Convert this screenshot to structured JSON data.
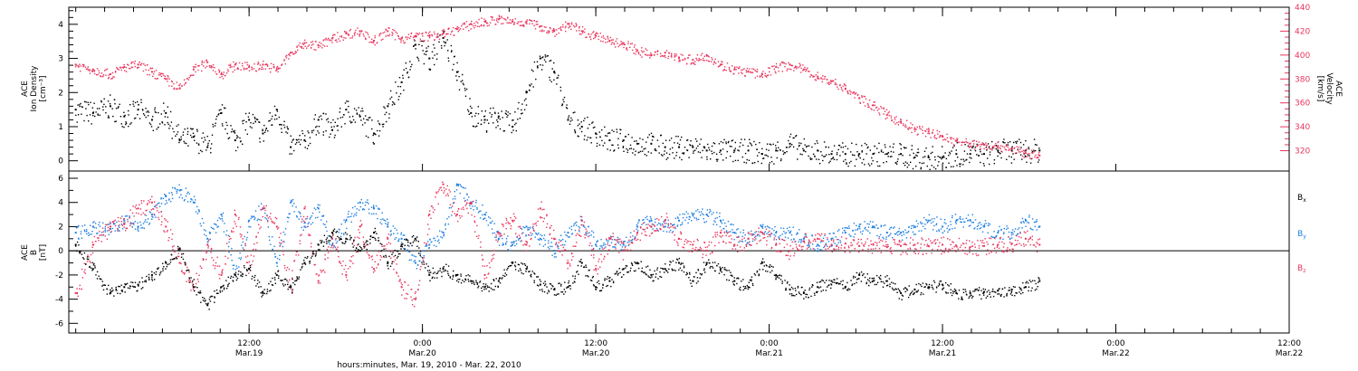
{
  "colors": {
    "black": "#000000",
    "red": "#e8365d",
    "blue": "#1f7fe0",
    "frame": "#000000"
  },
  "chart_data": [
    {
      "type": "scatter",
      "panel": "top",
      "ylabel_left": [
        "ACE",
        "Ion Density",
        "[cm⁻³]"
      ],
      "ylabel_right": [
        "ACE",
        "Velocity",
        "[km/s]"
      ],
      "ylim_left": [
        -0.3,
        4.5
      ],
      "ylim_right": [
        303,
        440
      ],
      "yticks_left": [
        "0",
        "1",
        "2",
        "3",
        "4"
      ],
      "yticks_right": [
        "320",
        "340",
        "360",
        "380",
        "400",
        "420",
        "440"
      ],
      "series": [
        {
          "axis": "left",
          "color": "#000000",
          "x": [
            0,
            0.05,
            0.1,
            0.14,
            0.18,
            0.22,
            0.26,
            0.3,
            0.34,
            0.38,
            0.42,
            0.46,
            0.5,
            0.54,
            0.58,
            0.62,
            0.66,
            0.7,
            0.74,
            0.78,
            0.82,
            0.86,
            0.9,
            0.94,
            0.98,
            1.02,
            1.06,
            1.1,
            1.14,
            1.18,
            1.22,
            1.26,
            1.3,
            1.34,
            1.38,
            1.42,
            1.46,
            1.5,
            1.54,
            1.58,
            1.62,
            1.66,
            1.7,
            1.74,
            1.78,
            1.82,
            1.86,
            1.9,
            1.94,
            1.98,
            2.02,
            2.06,
            2.1,
            2.14,
            2.18,
            2.22,
            2.26,
            2.3,
            2.34,
            2.38,
            2.42,
            2.46,
            2.5,
            2.54,
            2.58,
            2.62,
            2.66,
            2.7,
            2.74,
            2.78
          ],
          "y": [
            1.5,
            1.4,
            1.6,
            1.3,
            1.5,
            1.2,
            1.4,
            0.6,
            0.7,
            0.4,
            1.4,
            0.6,
            1.2,
            0.8,
            1.5,
            0.4,
            0.6,
            1.2,
            0.9,
            1.5,
            1.3,
            0.8,
            1.6,
            2.3,
            3.4,
            3.0,
            3.6,
            2.6,
            1.4,
            1.2,
            1.3,
            1.0,
            2.0,
            3.0,
            2.6,
            1.2,
            1.0,
            0.8,
            0.6,
            0.6,
            0.5,
            0.5,
            0.4,
            0.4,
            0.4,
            0.3,
            0.3,
            0.3,
            0.3,
            0.2,
            0.3,
            0.5,
            0.3,
            0.3,
            0.2,
            0.2,
            0.2,
            0.2,
            0.2,
            0.2,
            0.1,
            0.1,
            0.1,
            0.2,
            0.2,
            0.2,
            0.3,
            0.3,
            0.3,
            0.3
          ]
        },
        {
          "axis": "right",
          "color": "#e8365d",
          "x": [
            0,
            0.05,
            0.1,
            0.14,
            0.18,
            0.22,
            0.26,
            0.3,
            0.34,
            0.38,
            0.42,
            0.46,
            0.5,
            0.54,
            0.58,
            0.62,
            0.66,
            0.7,
            0.74,
            0.78,
            0.82,
            0.86,
            0.9,
            0.94,
            0.98,
            1.02,
            1.06,
            1.1,
            1.14,
            1.18,
            1.22,
            1.26,
            1.3,
            1.34,
            1.38,
            1.42,
            1.46,
            1.5,
            1.54,
            1.58,
            1.62,
            1.66,
            1.7,
            1.74,
            1.78,
            1.82,
            1.86,
            1.9,
            1.94,
            1.98,
            2.02,
            2.06,
            2.1,
            2.14,
            2.18,
            2.22,
            2.26,
            2.3,
            2.34,
            2.38,
            2.42,
            2.46,
            2.5,
            2.54,
            2.58,
            2.62,
            2.66,
            2.7,
            2.74,
            2.78
          ],
          "y": [
            392,
            388,
            384,
            390,
            392,
            386,
            380,
            372,
            388,
            394,
            384,
            392,
            390,
            392,
            388,
            402,
            410,
            408,
            414,
            418,
            420,
            412,
            420,
            414,
            416,
            416,
            418,
            422,
            426,
            428,
            430,
            428,
            428,
            424,
            420,
            426,
            420,
            416,
            412,
            410,
            404,
            400,
            402,
            398,
            396,
            400,
            392,
            388,
            386,
            384,
            390,
            392,
            388,
            382,
            378,
            372,
            364,
            358,
            350,
            344,
            338,
            336,
            332,
            328,
            326,
            325,
            324,
            322,
            318,
            316
          ]
        }
      ]
    },
    {
      "type": "scatter",
      "panel": "bottom",
      "ylabel_left": [
        "ACE",
        "B",
        "[nT]"
      ],
      "ylim": [
        -6.8,
        6.6
      ],
      "yticks": [
        "-6",
        "-4",
        "-2",
        "0",
        "2",
        "4",
        "6"
      ],
      "xticks": [
        {
          "x": 0.5,
          "label": [
            "12:00",
            "Mar.19"
          ]
        },
        {
          "x": 1.0,
          "label": [
            "0:00",
            "Mar.20"
          ]
        },
        {
          "x": 1.5,
          "label": [
            "12:00",
            "Mar.20"
          ]
        },
        {
          "x": 2.0,
          "label": [
            "0:00",
            "Mar.21"
          ]
        },
        {
          "x": 2.5,
          "label": [
            "12:00",
            "Mar.21"
          ]
        },
        {
          "x": 3.0,
          "label": [
            "0:00",
            "Mar.22"
          ]
        },
        {
          "x": 3.5,
          "label": [
            "12:00",
            "Mar.22"
          ]
        }
      ],
      "xlabel": "hours:minutes, Mar. 19, 2010 - Mar. 22, 2010",
      "legend": [
        "Bx",
        "By",
        "Bz"
      ],
      "series": [
        {
          "name": "Bx",
          "color": "#000000",
          "x": [
            0,
            0.05,
            0.1,
            0.14,
            0.18,
            0.22,
            0.26,
            0.3,
            0.34,
            0.38,
            0.42,
            0.46,
            0.5,
            0.54,
            0.58,
            0.62,
            0.66,
            0.7,
            0.74,
            0.78,
            0.82,
            0.86,
            0.9,
            0.94,
            0.98,
            1.02,
            1.06,
            1.1,
            1.14,
            1.18,
            1.22,
            1.26,
            1.3,
            1.34,
            1.38,
            1.42,
            1.46,
            1.5,
            1.54,
            1.58,
            1.62,
            1.66,
            1.7,
            1.74,
            1.78,
            1.82,
            1.86,
            1.9,
            1.94,
            1.98,
            2.02,
            2.06,
            2.1,
            2.14,
            2.18,
            2.22,
            2.26,
            2.3,
            2.34,
            2.38,
            2.42,
            2.46,
            2.5,
            2.54,
            2.58,
            2.62,
            2.66,
            2.7,
            2.74,
            2.78
          ],
          "y": [
            0.5,
            -1.5,
            -3.5,
            -3.0,
            -2.8,
            -2.0,
            -1.0,
            0.2,
            -3.0,
            -4.5,
            -3.0,
            -2.0,
            -1.5,
            -3.5,
            -2.0,
            -3.0,
            -1.0,
            0.5,
            1.5,
            1.0,
            0.0,
            1.5,
            -1.0,
            0.5,
            1.0,
            -2.0,
            -1.5,
            -2.0,
            -2.5,
            -3.0,
            -2.5,
            -1.0,
            -1.5,
            -2.8,
            -3.2,
            -3.0,
            -1.0,
            -3.0,
            -2.5,
            -1.5,
            -1.0,
            -2.0,
            -1.5,
            -1.0,
            -2.5,
            -1.0,
            -1.5,
            -2.5,
            -3.0,
            -1.0,
            -2.0,
            -3.2,
            -3.5,
            -3.0,
            -2.5,
            -3.0,
            -2.0,
            -2.5,
            -2.5,
            -3.5,
            -3.2,
            -3.0,
            -2.8,
            -3.5,
            -3.5,
            -3.4,
            -3.3,
            -3.2,
            -3.0,
            -2.5
          ]
        },
        {
          "name": "By",
          "color": "#1f7fe0",
          "x": [
            0,
            0.05,
            0.1,
            0.14,
            0.18,
            0.22,
            0.26,
            0.3,
            0.34,
            0.38,
            0.42,
            0.46,
            0.5,
            0.54,
            0.58,
            0.62,
            0.66,
            0.7,
            0.74,
            0.78,
            0.82,
            0.86,
            0.9,
            0.94,
            0.98,
            1.02,
            1.06,
            1.1,
            1.14,
            1.18,
            1.22,
            1.26,
            1.3,
            1.34,
            1.38,
            1.42,
            1.46,
            1.5,
            1.54,
            1.58,
            1.62,
            1.66,
            1.7,
            1.74,
            1.78,
            1.82,
            1.86,
            1.9,
            1.94,
            1.98,
            2.02,
            2.06,
            2.1,
            2.14,
            2.18,
            2.22,
            2.26,
            2.3,
            2.34,
            2.38,
            2.42,
            2.46,
            2.5,
            2.54,
            2.58,
            2.62,
            2.66,
            2.7,
            2.74,
            2.78
          ],
          "y": [
            1.5,
            2.0,
            1.8,
            2.5,
            2.0,
            3.0,
            4.5,
            5.0,
            4.0,
            1.0,
            3.0,
            -2.0,
            2.5,
            3.5,
            -1.0,
            4.0,
            2.0,
            3.5,
            0.5,
            2.5,
            4.0,
            3.5,
            2.0,
            1.0,
            -1.0,
            0.5,
            1.5,
            5.5,
            4.0,
            3.0,
            1.0,
            0.5,
            2.0,
            1.0,
            0.0,
            1.5,
            2.5,
            0.5,
            1.0,
            0.5,
            2.0,
            2.5,
            2.0,
            2.5,
            3.0,
            3.0,
            2.5,
            1.5,
            1.0,
            2.0,
            1.5,
            1.5,
            1.0,
            0.5,
            1.0,
            1.5,
            2.0,
            2.0,
            1.5,
            1.5,
            2.0,
            2.5,
            2.0,
            2.5,
            2.5,
            2.0,
            1.5,
            1.5,
            2.5,
            2.0
          ]
        },
        {
          "name": "Bz",
          "color": "#e8365d",
          "x": [
            0,
            0.05,
            0.1,
            0.14,
            0.18,
            0.22,
            0.26,
            0.3,
            0.34,
            0.38,
            0.42,
            0.46,
            0.5,
            0.54,
            0.58,
            0.62,
            0.66,
            0.7,
            0.74,
            0.78,
            0.82,
            0.86,
            0.9,
            0.94,
            0.98,
            1.02,
            1.06,
            1.1,
            1.14,
            1.18,
            1.22,
            1.26,
            1.3,
            1.34,
            1.38,
            1.42,
            1.46,
            1.5,
            1.54,
            1.58,
            1.62,
            1.66,
            1.7,
            1.74,
            1.78,
            1.82,
            1.86,
            1.9,
            1.94,
            1.98,
            2.02,
            2.06,
            2.1,
            2.14,
            2.18,
            2.22,
            2.26,
            2.3,
            2.34,
            2.38,
            2.42,
            2.46,
            2.5,
            2.54,
            2.58,
            2.62,
            2.66,
            2.7,
            2.74,
            2.78
          ],
          "y": [
            -3.5,
            0.5,
            2.0,
            2.2,
            3.5,
            4.0,
            2.0,
            -1.0,
            -3.0,
            0.5,
            -2.0,
            3.0,
            -1.5,
            3.5,
            2.0,
            -3.0,
            3.5,
            -2.5,
            1.0,
            -2.0,
            2.0,
            -1.5,
            1.0,
            -3.0,
            -4.0,
            3.0,
            5.5,
            3.0,
            4.0,
            -2.0,
            1.5,
            2.5,
            0.5,
            3.5,
            1.0,
            -1.0,
            2.5,
            -1.5,
            1.0,
            0.0,
            1.5,
            2.0,
            2.5,
            1.0,
            0.5,
            0.0,
            1.5,
            0.5,
            1.0,
            1.5,
            0.5,
            0.0,
            0.8,
            1.0,
            0.5,
            0.6,
            0.4,
            0.5,
            0.3,
            0.4,
            0.5,
            0.4,
            0.5,
            0.4,
            0.3,
            0.4,
            0.5,
            0.6,
            1.0,
            0.5
          ]
        }
      ]
    }
  ]
}
